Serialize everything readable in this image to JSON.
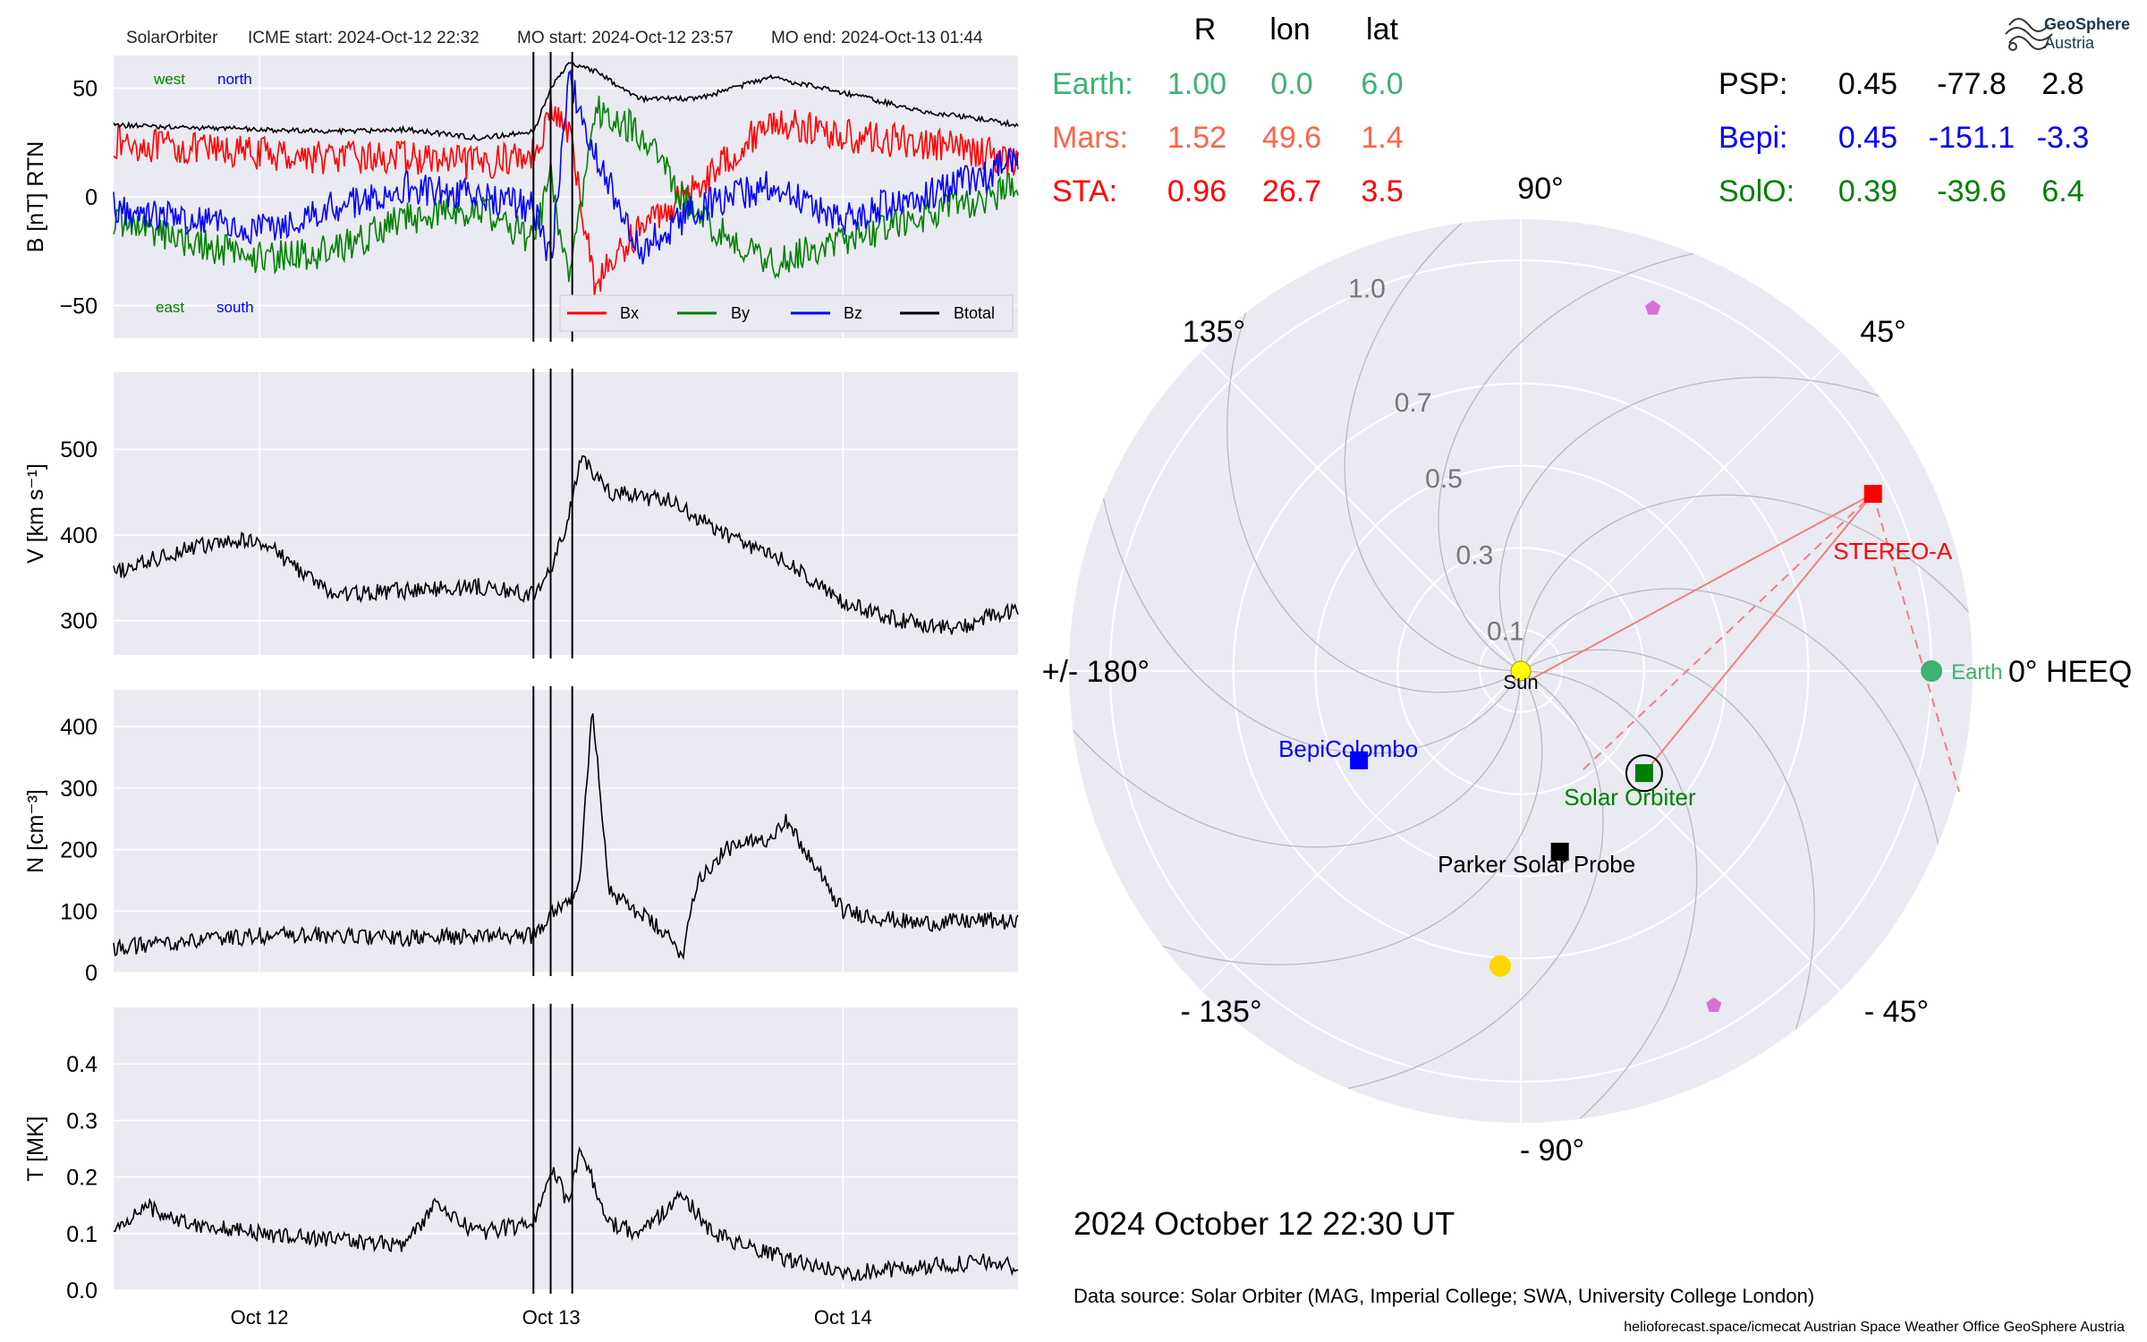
{
  "header": {
    "spacecraft": "SolarOrbiter",
    "icme_start": "ICME start: 2024-Oct-12 22:32",
    "mo_start": "MO start: 2024-Oct-12 23:57",
    "mo_end": "MO end: 2024-Oct-13 01:44"
  },
  "colors": {
    "panel_bg": "#eaeaf2",
    "grid": "#ffffff",
    "bx": "#ff0000",
    "by": "#008000",
    "bz": "#0000ff",
    "btot": "#000000",
    "earth": "#3cb371",
    "mars": "#ff6347",
    "sta": "#ff0000",
    "psp": "#000000",
    "bepi": "#0000ff",
    "solo": "#008000",
    "sun": "#ffff00",
    "venus": "#ffd700",
    "mercury": "#da70d6"
  },
  "chart_data": [
    {
      "type": "line",
      "name": "magnetic_field",
      "ylabel": "B [nT] RTN",
      "ylim": [
        -65,
        65
      ],
      "yticks": [
        "50",
        "0",
        "−50"
      ],
      "ytick_values": [
        50,
        0,
        -50
      ],
      "x_range_days": [
        11.5,
        14.6
      ],
      "vlines_days": [
        12.939,
        12.998,
        13.072
      ],
      "annotations": {
        "west": "west",
        "north": "north",
        "east": "east",
        "south": "south"
      },
      "legend": [
        "Bx",
        "By",
        "Bz",
        "Btotal"
      ],
      "legend_position": "lower right",
      "series": [
        {
          "name": "Bx",
          "color": "#ff0000",
          "x": [
            11.5,
            11.75,
            12.0,
            12.25,
            12.5,
            12.75,
            12.939,
            13.0,
            13.06,
            13.15,
            13.3,
            13.5,
            13.75,
            14.0,
            14.25,
            14.5,
            14.6
          ],
          "y": [
            25,
            22,
            20,
            18,
            18,
            15,
            20,
            40,
            30,
            -40,
            -15,
            5,
            35,
            28,
            25,
            20,
            15
          ]
        },
        {
          "name": "By",
          "color": "#008000",
          "x": [
            11.5,
            11.75,
            12.0,
            12.25,
            12.5,
            12.75,
            12.939,
            13.0,
            13.06,
            13.15,
            13.3,
            13.5,
            13.75,
            14.0,
            14.25,
            14.5,
            14.6
          ],
          "y": [
            -10,
            -20,
            -28,
            -25,
            -10,
            -5,
            -20,
            10,
            -40,
            40,
            30,
            -10,
            -30,
            -20,
            -10,
            0,
            5
          ]
        },
        {
          "name": "Bz",
          "color": "#0000ff",
          "x": [
            11.5,
            11.75,
            12.0,
            12.25,
            12.5,
            12.75,
            12.939,
            13.0,
            13.06,
            13.15,
            13.3,
            13.5,
            13.75,
            14.0,
            14.25,
            14.5,
            14.6
          ],
          "y": [
            -5,
            -10,
            -15,
            -5,
            5,
            0,
            -5,
            -30,
            55,
            20,
            -25,
            -5,
            5,
            -10,
            0,
            10,
            20
          ]
        },
        {
          "name": "Btotal",
          "color": "#000000",
          "x": [
            11.5,
            11.75,
            12.0,
            12.25,
            12.5,
            12.75,
            12.939,
            13.0,
            13.06,
            13.15,
            13.3,
            13.5,
            13.75,
            14.0,
            14.25,
            14.5,
            14.6
          ],
          "y": [
            33,
            32,
            31,
            30,
            31,
            27,
            30,
            50,
            62,
            58,
            45,
            45,
            55,
            48,
            40,
            35,
            33
          ]
        }
      ]
    },
    {
      "type": "line",
      "name": "speed",
      "ylabel": "V [km s⁻¹]",
      "ylim": [
        260,
        590
      ],
      "yticks": [
        "500",
        "400",
        "300"
      ],
      "ytick_values": [
        500,
        400,
        300
      ],
      "x_range_days": [
        11.5,
        14.6
      ],
      "series": [
        {
          "name": "",
          "color": "#000000",
          "x": [
            11.5,
            11.75,
            12.0,
            12.25,
            12.5,
            12.75,
            12.939,
            13.0,
            13.06,
            13.1,
            13.2,
            13.4,
            13.6,
            13.8,
            14.0,
            14.2,
            14.4,
            14.5,
            14.6
          ],
          "y": [
            355,
            385,
            395,
            330,
            335,
            340,
            330,
            360,
            420,
            490,
            450,
            440,
            400,
            370,
            320,
            300,
            290,
            305,
            310
          ]
        }
      ]
    },
    {
      "type": "line",
      "name": "density",
      "ylabel": "N [cm⁻³]",
      "ylim": [
        0,
        460
      ],
      "yticks": [
        "400",
        "300",
        "200",
        "100",
        "0"
      ],
      "ytick_values": [
        400,
        300,
        200,
        100,
        0
      ],
      "x_range_days": [
        11.5,
        14.6
      ],
      "series": [
        {
          "name": "",
          "color": "#000000",
          "x": [
            11.5,
            11.75,
            12.0,
            12.25,
            12.5,
            12.75,
            12.939,
            13.0,
            13.06,
            13.1,
            13.14,
            13.2,
            13.35,
            13.45,
            13.5,
            13.6,
            13.75,
            13.8,
            14.0,
            14.25,
            14.5,
            14.6
          ],
          "y": [
            40,
            50,
            60,
            60,
            55,
            60,
            60,
            100,
            120,
            150,
            440,
            130,
            80,
            30,
            150,
            200,
            220,
            250,
            100,
            80,
            85,
            80
          ]
        }
      ]
    },
    {
      "type": "line",
      "name": "temperature",
      "ylabel": "T [MK]",
      "ylim": [
        0,
        0.5
      ],
      "yticks": [
        "0.4",
        "0.3",
        "0.2",
        "0.1",
        "0.0"
      ],
      "ytick_values": [
        0.4,
        0.3,
        0.2,
        0.1,
        0.0
      ],
      "x_range_days": [
        11.5,
        14.6
      ],
      "xticks": [
        "Oct 12",
        "Oct 13",
        "Oct 14"
      ],
      "xtick_values": [
        12.0,
        13.0,
        14.0
      ],
      "series": [
        {
          "name": "",
          "color": "#000000",
          "x": [
            11.5,
            11.6,
            11.75,
            12.0,
            12.25,
            12.5,
            12.6,
            12.75,
            12.939,
            13.0,
            13.06,
            13.1,
            13.2,
            13.3,
            13.45,
            13.55,
            13.7,
            13.85,
            14.0,
            14.25,
            14.5,
            14.6
          ],
          "y": [
            0.1,
            0.15,
            0.12,
            0.1,
            0.09,
            0.08,
            0.15,
            0.1,
            0.12,
            0.22,
            0.15,
            0.25,
            0.12,
            0.1,
            0.17,
            0.1,
            0.07,
            0.05,
            0.03,
            0.04,
            0.05,
            0.04
          ]
        }
      ]
    },
    {
      "type": "scatter",
      "name": "orbit_polar_plot",
      "projection": "polar",
      "r_labels": [
        "0.1",
        "0.3",
        "0.5",
        "0.7",
        "1.0"
      ],
      "r_values": [
        0.1,
        0.3,
        0.5,
        0.7,
        1.0
      ],
      "angle_labels": {
        "a0": "0° HEEQ",
        "a45": "45°",
        "a90": "90°",
        "a135": "135°",
        "a180": "+/- 180°",
        "am135": "- 135°",
        "am90": "- 90°",
        "am45": "- 45°"
      },
      "objects": [
        {
          "name": "Sun",
          "label": "Sun",
          "r": 0.0,
          "lon": 0.0,
          "color": "#ffff00",
          "marker": "circle"
        },
        {
          "name": "Earth",
          "label": "Earth",
          "r": 1.0,
          "lon": 0.0,
          "color": "#3cb371",
          "marker": "circle"
        },
        {
          "name": "STEREO-A",
          "label": "STEREO-A",
          "r": 0.96,
          "lon": 26.7,
          "color": "#ff0000",
          "marker": "square"
        },
        {
          "name": "Solar Orbiter",
          "label": "Solar Orbiter",
          "r": 0.39,
          "lon": -39.6,
          "color": "#008000",
          "marker": "square"
        },
        {
          "name": "Parker Solar Probe",
          "label": "Parker Solar Probe",
          "r": 0.45,
          "lon": -77.8,
          "color": "#000000",
          "marker": "square"
        },
        {
          "name": "BepiColombo",
          "label": "BepiColombo",
          "r": 0.45,
          "lon": -151.1,
          "color": "#0000ff",
          "marker": "square"
        },
        {
          "name": "Venus",
          "label": "",
          "r": 0.72,
          "lon": -94.0,
          "color": "#ffd700",
          "marker": "circle"
        },
        {
          "name": "Mercury-1",
          "label": "",
          "r": 0.94,
          "lon": 70.0,
          "color": "#da70d6",
          "marker": "pentagon"
        },
        {
          "name": "Mercury-2",
          "label": "",
          "r": 0.94,
          "lon": -60.0,
          "color": "#da70d6",
          "marker": "pentagon"
        }
      ]
    }
  ],
  "positions_table": {
    "headers": [
      "R",
      "lon",
      "lat"
    ],
    "left_rows": [
      {
        "name": "Earth:",
        "r": "1.00",
        "lon": "0.0",
        "lat": "6.0",
        "color": "#3cb371"
      },
      {
        "name": "Mars:",
        "r": "1.52",
        "lon": "49.6",
        "lat": "1.4",
        "color": "#ff6347"
      },
      {
        "name": "STA:",
        "r": "0.96",
        "lon": "26.7",
        "lat": "3.5",
        "color": "#ff0000"
      }
    ],
    "right_rows": [
      {
        "name": "PSP:",
        "r": "0.45",
        "lon": "-77.8",
        "lat": "2.8",
        "color": "#000000"
      },
      {
        "name": "Bepi:",
        "r": "0.45",
        "lon": "-151.1",
        "lat": "-3.3",
        "color": "#0000ff"
      },
      {
        "name": "SolO:",
        "r": "0.39",
        "lon": "-39.6",
        "lat": "6.4",
        "color": "#008000"
      }
    ]
  },
  "logo": {
    "line1": "GeoSphere",
    "line2": "Austria"
  },
  "footer": {
    "datetime": "2024 October 12  22:30 UT",
    "data_source": "Data source: Solar Orbiter (MAG, Imperial College; SWA, University College London)",
    "credits": "helioforecast.space/icmecat   Austrian Space Weather Office   GeoSphere Austria"
  }
}
